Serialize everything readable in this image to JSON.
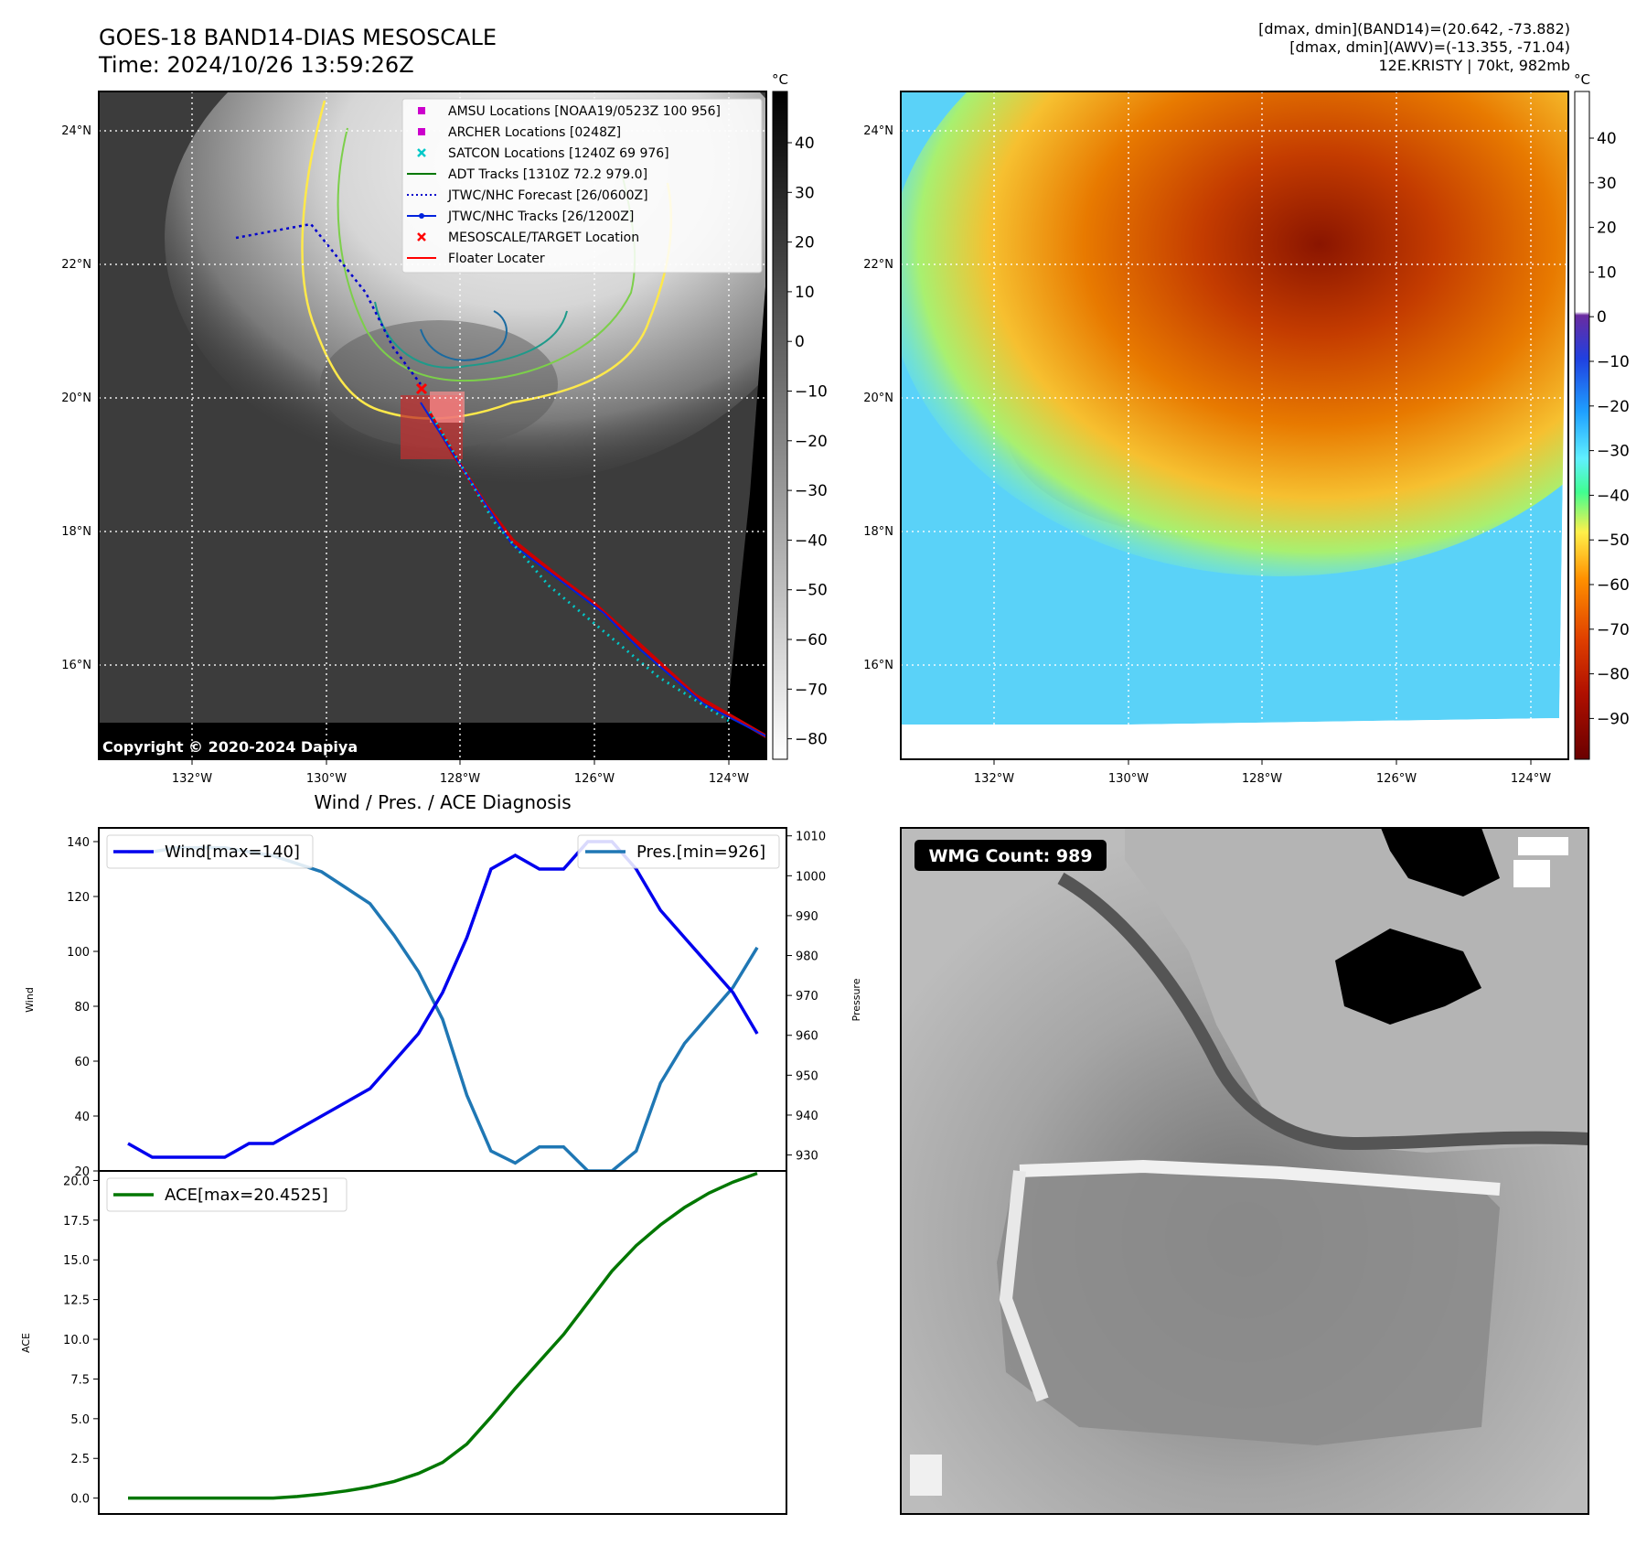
{
  "header": {
    "title_line1": "GOES-18 BAND14-DIAS MESOSCALE",
    "title_line2": "Time: 2024/10/26 13:59:26Z",
    "info_line1": "[dmax, dmin](BAND14)=(20.642, -73.882)",
    "info_line2": "[dmax, dmin](AWV)=(-13.355, -71.04)",
    "info_line3": "12E.KRISTY | 70kt, 982mb"
  },
  "colors": {
    "wind": "#0000ee",
    "pressure": "#1f77b4",
    "ace": "#007700",
    "track": "#ff0000",
    "forecast": "#0000cc",
    "satcon": "#00c8c8",
    "amsu": "#cc00cc"
  },
  "maps": {
    "lon_ticks": [
      "132°W",
      "130°W",
      "128°W",
      "126°W",
      "124°W"
    ],
    "lat_ticks": [
      "24°N",
      "22°N",
      "20°N",
      "18°N",
      "16°N"
    ],
    "unit": "°C",
    "copyright": "Copyright © 2020-2024 Dapiya",
    "gray_colorbar_ticks": [
      "40",
      "30",
      "20",
      "10",
      "0",
      "−10",
      "−20",
      "−30",
      "−40",
      "−50",
      "−60",
      "−70",
      "−80"
    ],
    "color_colorbar_ticks": [
      "40",
      "30",
      "20",
      "10",
      "0",
      "−10",
      "−20",
      "−30",
      "−40",
      "−50",
      "−60",
      "−70",
      "−80",
      "−90"
    ],
    "legend": [
      "AMSU Locations [NOAA19/0523Z 100 956]",
      "ARCHER Locations [0248Z]",
      "SATCON Locations [1240Z 69 976]",
      "ADT Tracks [1310Z 72.2 979.0]",
      "JTWC/NHC Forecast [26/0600Z]",
      "JTWC/NHC Tracks [26/1200Z]",
      "MESOSCALE/TARGET Location",
      "Floater Locater"
    ]
  },
  "wmg": {
    "label": "WMG Count: 989"
  },
  "chart_data": [
    {
      "type": "line",
      "title": "Wind / Pres. / ACE Diagnosis",
      "ylabel": "Wind",
      "y2label": "Pressure",
      "ylim": [
        20,
        145
      ],
      "y2lim": [
        926,
        1012
      ],
      "yticks": [
        "20",
        "40",
        "60",
        "80",
        "100",
        "120",
        "140"
      ],
      "y2ticks": [
        "930",
        "940",
        "950",
        "960",
        "970",
        "980",
        "990",
        "1000",
        "1010"
      ],
      "series": [
        {
          "name": "Wind[max=140]",
          "axis": "left",
          "x": [
            0,
            1,
            2,
            3,
            4,
            5,
            6,
            7,
            8,
            9,
            10,
            11,
            12,
            13,
            14,
            15,
            16,
            17,
            18,
            19,
            20,
            21,
            22,
            23,
            24,
            25,
            26
          ],
          "values": [
            30,
            25,
            25,
            25,
            25,
            30,
            30,
            35,
            40,
            45,
            50,
            60,
            70,
            85,
            105,
            130,
            135,
            130,
            130,
            140,
            140,
            130,
            115,
            105,
            95,
            85,
            70
          ]
        },
        {
          "name": "Pres.[min=926]",
          "axis": "right",
          "x": [
            0,
            1,
            2,
            3,
            4,
            5,
            6,
            7,
            8,
            9,
            10,
            11,
            12,
            13,
            14,
            15,
            16,
            17,
            18,
            19,
            20,
            21,
            22,
            23,
            24,
            25,
            26
          ],
          "values": [
            1006,
            1006,
            1007,
            1007,
            1007,
            1006,
            1005,
            1003,
            1001,
            997,
            993,
            985,
            976,
            964,
            945,
            931,
            928,
            932,
            932,
            926,
            926,
            931,
            948,
            958,
            965,
            972,
            982
          ]
        }
      ]
    },
    {
      "type": "line",
      "ylabel": "ACE",
      "ylim": [
        -1,
        20.6
      ],
      "yticks": [
        "0.0",
        "2.5",
        "5.0",
        "7.5",
        "10.0",
        "12.5",
        "15.0",
        "17.5",
        "20.0"
      ],
      "series": [
        {
          "name": "ACE[max=20.4525]",
          "x": [
            0,
            1,
            2,
            3,
            4,
            5,
            6,
            7,
            8,
            9,
            10,
            11,
            12,
            13,
            14,
            15,
            16,
            17,
            18,
            19,
            20,
            21,
            22,
            23,
            24,
            25,
            26
          ],
          "values": [
            0,
            0,
            0,
            0,
            0,
            0,
            0,
            0.1,
            0.25,
            0.45,
            0.7,
            1.05,
            1.55,
            2.25,
            3.4,
            5.1,
            6.9,
            8.6,
            10.3,
            12.3,
            14.3,
            15.9,
            17.2,
            18.3,
            19.2,
            19.9,
            20.45
          ]
        }
      ]
    }
  ]
}
